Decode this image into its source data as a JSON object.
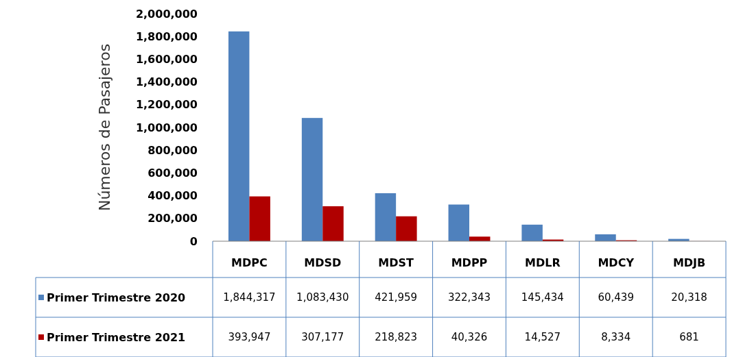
{
  "chart_data": {
    "type": "bar",
    "ylabel": "Números de Pasajeros",
    "categories": [
      "MDPC",
      "MDSD",
      "MDST",
      "MDPP",
      "MDLR",
      "MDCY",
      "MDJB"
    ],
    "series": [
      {
        "name": "Primer Trimestre 2020",
        "color": "#4f81bd",
        "values": [
          1844317,
          1083430,
          421959,
          322343,
          145434,
          60439,
          20318
        ],
        "value_labels": [
          "1,844,317",
          "1,083,430",
          "421,959",
          "322,343",
          "145,434",
          "60,439",
          "20,318"
        ]
      },
      {
        "name": "Primer Trimestre 2021",
        "color": "#b00000",
        "values": [
          393947,
          307177,
          218823,
          40326,
          14527,
          8334,
          681
        ],
        "value_labels": [
          "393,947",
          "307,177",
          "218,823",
          "40,326",
          "14,527",
          "8,334",
          "681"
        ]
      }
    ],
    "ylim": [
      0,
      2000000
    ],
    "yticks": [
      {
        "value": 0,
        "label": "0"
      },
      {
        "value": 200000,
        "label": "200,000"
      },
      {
        "value": 400000,
        "label": "400,000"
      },
      {
        "value": 600000,
        "label": "600,000"
      },
      {
        "value": 800000,
        "label": "800,000"
      },
      {
        "value": 1000000,
        "label": "1,000,000"
      },
      {
        "value": 1200000,
        "label": "1,200,000"
      },
      {
        "value": 1400000,
        "label": "1,400,000"
      },
      {
        "value": 1600000,
        "label": "1,600,000"
      },
      {
        "value": 1800000,
        "label": "1,800,000"
      },
      {
        "value": 2000000,
        "label": "2,000,000"
      }
    ],
    "grid": false,
    "legend": "bottom left"
  }
}
